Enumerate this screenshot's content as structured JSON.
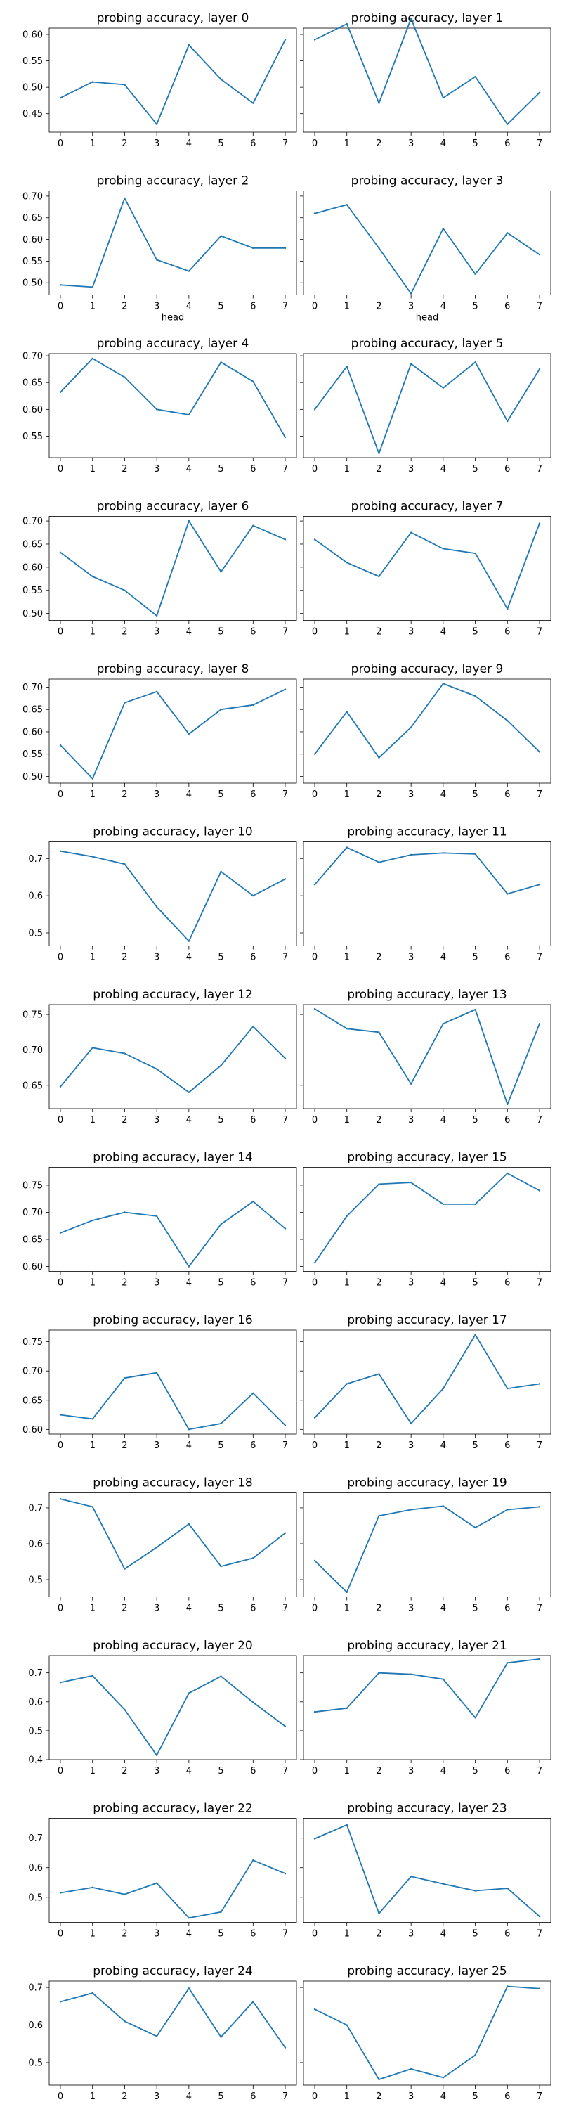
{
  "figure": {
    "line_color": "#1f77b4",
    "x_ticks": [
      "0",
      "1",
      "2",
      "3",
      "4",
      "5",
      "6",
      "7"
    ],
    "x_label_text": "head"
  },
  "chart_data": [
    {
      "type": "line",
      "title": "probing accuracy, layer 0",
      "x": [
        0,
        1,
        2,
        3,
        4,
        5,
        6,
        7
      ],
      "values": [
        0.48,
        0.51,
        0.505,
        0.43,
        0.58,
        0.515,
        0.47,
        0.59
      ],
      "yticks": [
        "0.45",
        "0.50",
        "0.55",
        "0.60"
      ],
      "ylim": [
        0.415,
        0.612
      ],
      "xlabel": ""
    },
    {
      "type": "line",
      "title": "probing accuracy, layer 1",
      "x": [
        0,
        1,
        2,
        3,
        4,
        5,
        6,
        7
      ],
      "values": [
        0.59,
        0.62,
        0.47,
        0.63,
        0.48,
        0.52,
        0.43,
        0.49
      ],
      "yticks": [],
      "ylim": [
        0.415,
        0.612
      ],
      "xlabel": ""
    },
    {
      "type": "line",
      "title": "probing accuracy, layer 2",
      "x": [
        0,
        1,
        2,
        3,
        4,
        5,
        6,
        7
      ],
      "values": [
        0.495,
        0.49,
        0.695,
        0.553,
        0.527,
        0.608,
        0.58,
        0.58
      ],
      "yticks": [
        "0.50",
        "0.55",
        "0.60",
        "0.65",
        "0.70"
      ],
      "ylim": [
        0.472,
        0.712
      ],
      "xlabel": "head"
    },
    {
      "type": "line",
      "title": "probing accuracy, layer 3",
      "x": [
        0,
        1,
        2,
        3,
        4,
        5,
        6,
        7
      ],
      "values": [
        0.66,
        0.68,
        0.58,
        0.475,
        0.625,
        0.52,
        0.615,
        0.565
      ],
      "yticks": [],
      "ylim": [
        0.472,
        0.712
      ],
      "xlabel": "head"
    },
    {
      "type": "line",
      "title": "probing accuracy, layer 4",
      "x": [
        0,
        1,
        2,
        3,
        4,
        5,
        6,
        7
      ],
      "values": [
        0.632,
        0.695,
        0.66,
        0.6,
        0.59,
        0.688,
        0.652,
        0.548
      ],
      "yticks": [
        "0.55",
        "0.60",
        "0.65",
        "0.70"
      ],
      "ylim": [
        0.51,
        0.704
      ],
      "xlabel": ""
    },
    {
      "type": "line",
      "title": "probing accuracy, layer 5",
      "x": [
        0,
        1,
        2,
        3,
        4,
        5,
        6,
        7
      ],
      "values": [
        0.6,
        0.68,
        0.518,
        0.685,
        0.64,
        0.688,
        0.578,
        0.675
      ],
      "yticks": [],
      "ylim": [
        0.51,
        0.704
      ],
      "xlabel": ""
    },
    {
      "type": "line",
      "title": "probing accuracy, layer 6",
      "x": [
        0,
        1,
        2,
        3,
        4,
        5,
        6,
        7
      ],
      "values": [
        0.632,
        0.58,
        0.55,
        0.495,
        0.7,
        0.59,
        0.69,
        0.66
      ],
      "yticks": [
        "0.50",
        "0.55",
        "0.60",
        "0.65",
        "0.70"
      ],
      "ylim": [
        0.485,
        0.71
      ],
      "xlabel": ""
    },
    {
      "type": "line",
      "title": "probing accuracy, layer 7",
      "x": [
        0,
        1,
        2,
        3,
        4,
        5,
        6,
        7
      ],
      "values": [
        0.66,
        0.61,
        0.58,
        0.675,
        0.64,
        0.63,
        0.51,
        0.695
      ],
      "yticks": [],
      "ylim": [
        0.485,
        0.71
      ],
      "xlabel": ""
    },
    {
      "type": "line",
      "title": "probing accuracy, layer 8",
      "x": [
        0,
        1,
        2,
        3,
        4,
        5,
        6,
        7
      ],
      "values": [
        0.57,
        0.495,
        0.665,
        0.69,
        0.595,
        0.65,
        0.66,
        0.695
      ],
      "yticks": [
        "0.50",
        "0.55",
        "0.60",
        "0.65",
        "0.70"
      ],
      "ylim": [
        0.485,
        0.718
      ],
      "xlabel": ""
    },
    {
      "type": "line",
      "title": "probing accuracy, layer 9",
      "x": [
        0,
        1,
        2,
        3,
        4,
        5,
        6,
        7
      ],
      "values": [
        0.55,
        0.645,
        0.542,
        0.61,
        0.708,
        0.68,
        0.625,
        0.555
      ],
      "yticks": [],
      "ylim": [
        0.485,
        0.718
      ],
      "xlabel": ""
    },
    {
      "type": "line",
      "title": "probing accuracy, layer 10",
      "x": [
        0,
        1,
        2,
        3,
        4,
        5,
        6,
        7
      ],
      "values": [
        0.72,
        0.705,
        0.685,
        0.57,
        0.478,
        0.665,
        0.6,
        0.645
      ],
      "yticks": [
        "0.5",
        "0.6",
        "0.7"
      ],
      "ylim": [
        0.465,
        0.745
      ],
      "xlabel": ""
    },
    {
      "type": "line",
      "title": "probing accuracy, layer 11",
      "x": [
        0,
        1,
        2,
        3,
        4,
        5,
        6,
        7
      ],
      "values": [
        0.63,
        0.73,
        0.69,
        0.71,
        0.715,
        0.712,
        0.605,
        0.63
      ],
      "yticks": [],
      "ylim": [
        0.465,
        0.745
      ],
      "xlabel": ""
    },
    {
      "type": "line",
      "title": "probing accuracy, layer 12",
      "x": [
        0,
        1,
        2,
        3,
        4,
        5,
        6,
        7
      ],
      "values": [
        0.648,
        0.703,
        0.695,
        0.673,
        0.64,
        0.678,
        0.733,
        0.688
      ],
      "yticks": [
        "0.65",
        "0.70",
        "0.75"
      ],
      "ylim": [
        0.617,
        0.764
      ],
      "xlabel": ""
    },
    {
      "type": "line",
      "title": "probing accuracy, layer 13",
      "x": [
        0,
        1,
        2,
        3,
        4,
        5,
        6,
        7
      ],
      "values": [
        0.758,
        0.73,
        0.725,
        0.652,
        0.737,
        0.757,
        0.623,
        0.737
      ],
      "yticks": [],
      "ylim": [
        0.617,
        0.764
      ],
      "xlabel": ""
    },
    {
      "type": "line",
      "title": "probing accuracy, layer 14",
      "x": [
        0,
        1,
        2,
        3,
        4,
        5,
        6,
        7
      ],
      "values": [
        0.662,
        0.685,
        0.7,
        0.693,
        0.6,
        0.678,
        0.72,
        0.67
      ],
      "yticks": [
        "0.60",
        "0.65",
        "0.70",
        "0.75"
      ],
      "ylim": [
        0.591,
        0.783
      ],
      "xlabel": ""
    },
    {
      "type": "line",
      "title": "probing accuracy, layer 15",
      "x": [
        0,
        1,
        2,
        3,
        4,
        5,
        6,
        7
      ],
      "values": [
        0.607,
        0.693,
        0.752,
        0.755,
        0.715,
        0.715,
        0.772,
        0.74
      ],
      "yticks": [],
      "ylim": [
        0.591,
        0.783
      ],
      "xlabel": ""
    },
    {
      "type": "line",
      "title": "probing accuracy, layer 16",
      "x": [
        0,
        1,
        2,
        3,
        4,
        5,
        6,
        7
      ],
      "values": [
        0.625,
        0.618,
        0.688,
        0.697,
        0.6,
        0.61,
        0.662,
        0.607
      ],
      "yticks": [
        "0.60",
        "0.65",
        "0.70",
        "0.75"
      ],
      "ylim": [
        0.592,
        0.77
      ],
      "xlabel": ""
    },
    {
      "type": "line",
      "title": "probing accuracy, layer 17",
      "x": [
        0,
        1,
        2,
        3,
        4,
        5,
        6,
        7
      ],
      "values": [
        0.62,
        0.678,
        0.695,
        0.61,
        0.67,
        0.762,
        0.67,
        0.678
      ],
      "yticks": [],
      "ylim": [
        0.592,
        0.77
      ],
      "xlabel": ""
    },
    {
      "type": "line",
      "title": "probing accuracy, layer 18",
      "x": [
        0,
        1,
        2,
        3,
        4,
        5,
        6,
        7
      ],
      "values": [
        0.725,
        0.703,
        0.53,
        0.59,
        0.655,
        0.537,
        0.56,
        0.63
      ],
      "yticks": [
        "0.5",
        "0.6",
        "0.7"
      ],
      "ylim": [
        0.452,
        0.742
      ],
      "xlabel": ""
    },
    {
      "type": "line",
      "title": "probing accuracy, layer 19",
      "x": [
        0,
        1,
        2,
        3,
        4,
        5,
        6,
        7
      ],
      "values": [
        0.553,
        0.465,
        0.678,
        0.695,
        0.705,
        0.645,
        0.695,
        0.703
      ],
      "yticks": [],
      "ylim": [
        0.452,
        0.742
      ],
      "xlabel": ""
    },
    {
      "type": "line",
      "title": "probing accuracy, layer 20",
      "x": [
        0,
        1,
        2,
        3,
        4,
        5,
        6,
        7
      ],
      "values": [
        0.667,
        0.69,
        0.573,
        0.415,
        0.63,
        0.688,
        0.598,
        0.515
      ],
      "yticks": [
        "0.4",
        "0.5",
        "0.6",
        "0.7"
      ],
      "ylim": [
        0.4,
        0.76
      ],
      "xlabel": ""
    },
    {
      "type": "line",
      "title": "probing accuracy, layer 21",
      "x": [
        0,
        1,
        2,
        3,
        4,
        5,
        6,
        7
      ],
      "values": [
        0.565,
        0.578,
        0.7,
        0.695,
        0.678,
        0.545,
        0.735,
        0.748
      ],
      "yticks": [],
      "ylim": [
        0.4,
        0.76
      ],
      "xlabel": ""
    },
    {
      "type": "line",
      "title": "probing accuracy, layer 22",
      "x": [
        0,
        1,
        2,
        3,
        4,
        5,
        6,
        7
      ],
      "values": [
        0.515,
        0.533,
        0.51,
        0.548,
        0.43,
        0.45,
        0.625,
        0.58
      ],
      "yticks": [
        "0.5",
        "0.6",
        "0.7"
      ],
      "ylim": [
        0.415,
        0.767
      ],
      "xlabel": ""
    },
    {
      "type": "line",
      "title": "probing accuracy, layer 23",
      "x": [
        0,
        1,
        2,
        3,
        4,
        5,
        6,
        7
      ],
      "values": [
        0.698,
        0.745,
        0.445,
        0.57,
        0.545,
        0.522,
        0.53,
        0.435
      ],
      "yticks": [],
      "ylim": [
        0.415,
        0.767
      ],
      "xlabel": ""
    },
    {
      "type": "line",
      "title": "probing accuracy, layer 24",
      "x": [
        0,
        1,
        2,
        3,
        4,
        5,
        6,
        7
      ],
      "values": [
        0.662,
        0.685,
        0.61,
        0.57,
        0.698,
        0.568,
        0.662,
        0.54
      ],
      "yticks": [
        "0.5",
        "0.6",
        "0.7"
      ],
      "ylim": [
        0.44,
        0.717
      ],
      "xlabel": ""
    },
    {
      "type": "line",
      "title": "probing accuracy, layer 25",
      "x": [
        0,
        1,
        2,
        3,
        4,
        5,
        6,
        7
      ],
      "values": [
        0.642,
        0.6,
        0.455,
        0.483,
        0.46,
        0.52,
        0.703,
        0.697
      ],
      "yticks": [],
      "ylim": [
        0.44,
        0.717
      ],
      "xlabel": ""
    }
  ]
}
